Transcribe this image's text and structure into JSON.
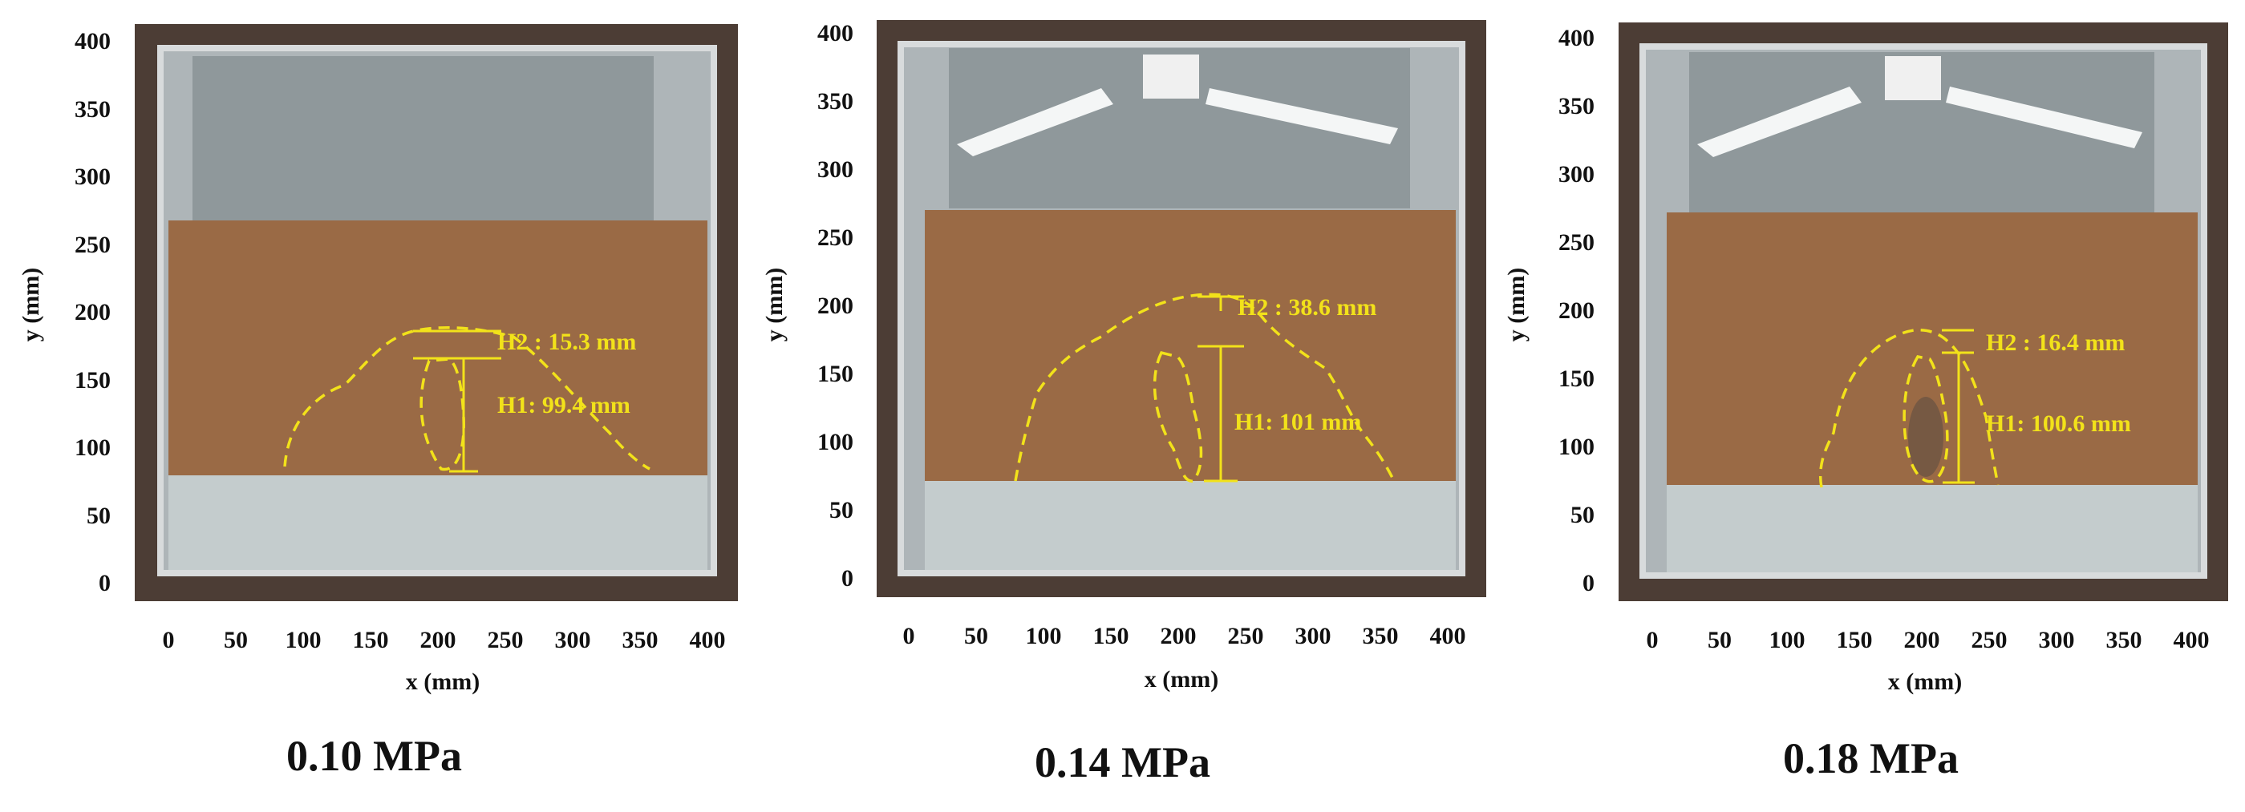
{
  "panels": [
    {
      "id": "p1",
      "pressure_label": "0.10 MPa",
      "h2_label": "H2 : 15.3 mm",
      "h1_label": "H1: 99.4 mm",
      "sand_top_y_mm": 262,
      "sand_bottom_y_mm": 78
    },
    {
      "id": "p2",
      "pressure_label": "0.14 MPa",
      "h2_label": "H2 : 38.6 mm",
      "h1_label": "H1: 101 mm",
      "sand_top_y_mm": 268,
      "sand_bottom_y_mm": 70
    },
    {
      "id": "p3",
      "pressure_label": "0.18 MPa",
      "h2_label": "H2 : 16.4 mm",
      "h1_label": "H1: 100.6 mm",
      "sand_top_y_mm": 270,
      "sand_bottom_y_mm": 72
    }
  ],
  "axes": {
    "xlabel": "x (mm)",
    "ylabel": "y (mm)",
    "x_ticks": [
      "0",
      "50",
      "100",
      "150",
      "200",
      "250",
      "300",
      "350",
      "400"
    ],
    "y_ticks": [
      "0",
      "50",
      "100",
      "150",
      "200",
      "250",
      "300",
      "350",
      "400"
    ]
  },
  "colors": {
    "annotation": "#f2e21a",
    "sand": "#9a6a45",
    "frame": "#5a4a40",
    "glass": "#c9d0d2"
  }
}
